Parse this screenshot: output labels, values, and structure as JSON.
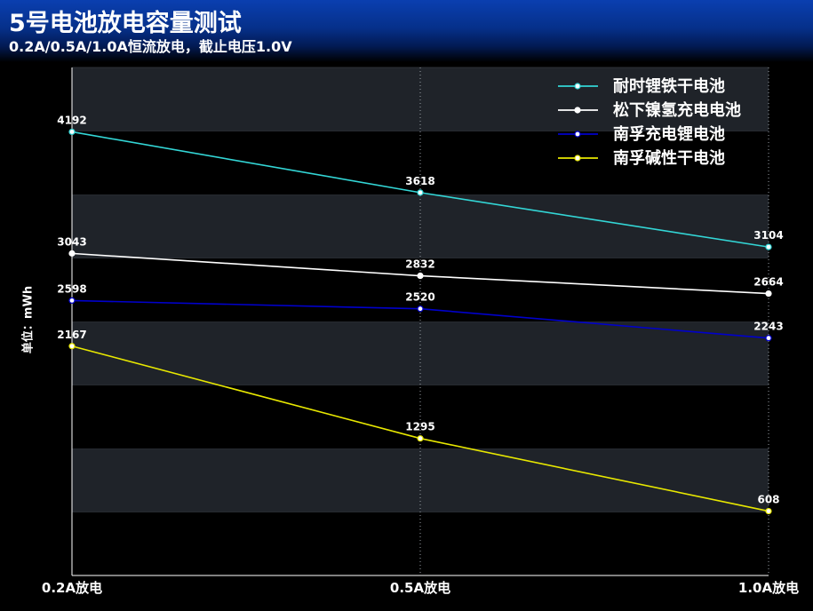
{
  "header": {
    "title": "5号电池放电容量测试",
    "subtitle": "0.2A/0.5A/1.0A恒流放电，截止电压1.0V"
  },
  "chart_data": {
    "type": "line",
    "categories": [
      "0.2A放电",
      "0.5A放电",
      "1.0A放电"
    ],
    "ylabel": "单位：mWh",
    "ylim": [
      0,
      4800
    ],
    "grid": true,
    "legend_position": "top-right",
    "series": [
      {
        "name": "耐时锂铁干电池",
        "color": "#33d6d6",
        "values": [
          4192,
          3618,
          3104
        ]
      },
      {
        "name": "松下镍氢充电电池",
        "color": "#ffffff",
        "values": [
          3043,
          2832,
          2664
        ]
      },
      {
        "name": "南孚充电锂电池",
        "color": "#0000cc",
        "values": [
          2598,
          2520,
          2243
        ]
      },
      {
        "name": "南孚碱性干电池",
        "color": "#e8e800",
        "values": [
          2167,
          1295,
          608
        ]
      }
    ]
  }
}
